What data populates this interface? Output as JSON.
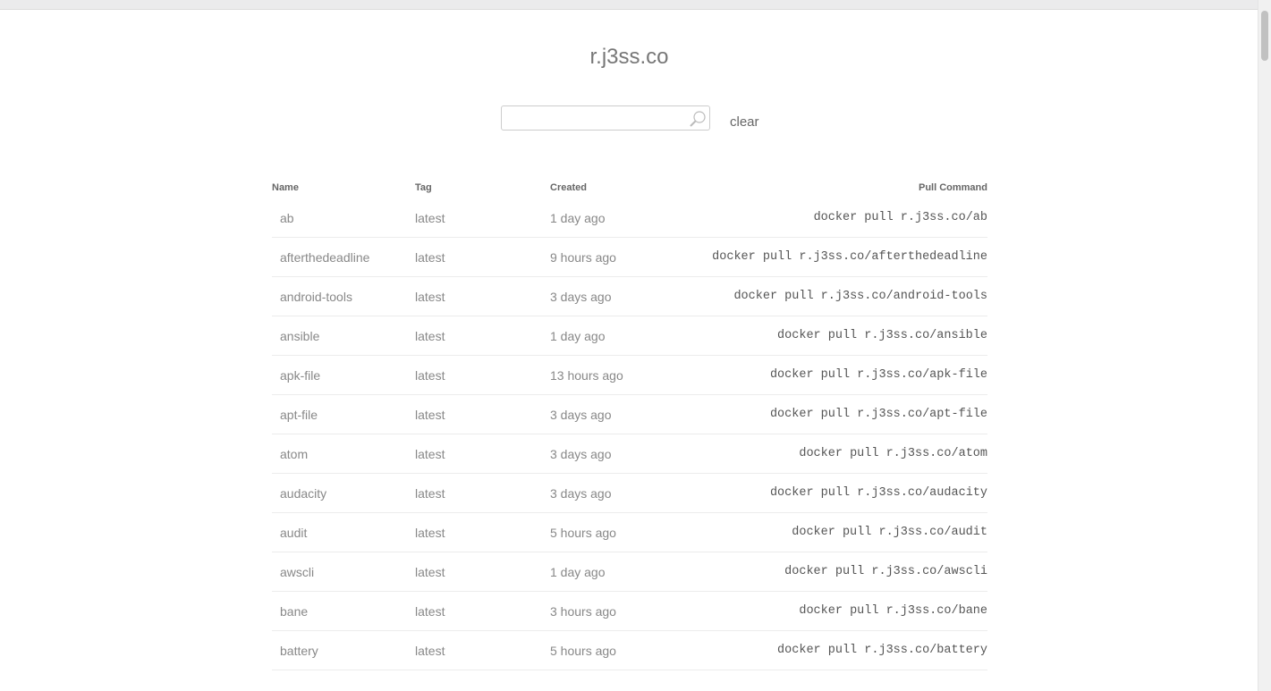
{
  "title": "r.j3ss.co",
  "search": {
    "value": "",
    "placeholder": "",
    "icon": "search-icon",
    "clear_label": "clear"
  },
  "table": {
    "headers": {
      "name": "Name",
      "tag": "Tag",
      "created": "Created",
      "pull": "Pull Command"
    },
    "rows": [
      {
        "name": "ab",
        "tag": "latest",
        "created": "1 day ago",
        "pull": "docker pull r.j3ss.co/ab"
      },
      {
        "name": "afterthedeadline",
        "tag": "latest",
        "created": "9 hours ago",
        "pull": "docker pull r.j3ss.co/afterthedeadline"
      },
      {
        "name": "android-tools",
        "tag": "latest",
        "created": "3 days ago",
        "pull": "docker pull r.j3ss.co/android-tools"
      },
      {
        "name": "ansible",
        "tag": "latest",
        "created": "1 day ago",
        "pull": "docker pull r.j3ss.co/ansible"
      },
      {
        "name": "apk-file",
        "tag": "latest",
        "created": "13 hours ago",
        "pull": "docker pull r.j3ss.co/apk-file"
      },
      {
        "name": "apt-file",
        "tag": "latest",
        "created": "3 days ago",
        "pull": "docker pull r.j3ss.co/apt-file"
      },
      {
        "name": "atom",
        "tag": "latest",
        "created": "3 days ago",
        "pull": "docker pull r.j3ss.co/atom"
      },
      {
        "name": "audacity",
        "tag": "latest",
        "created": "3 days ago",
        "pull": "docker pull r.j3ss.co/audacity"
      },
      {
        "name": "audit",
        "tag": "latest",
        "created": "5 hours ago",
        "pull": "docker pull r.j3ss.co/audit"
      },
      {
        "name": "awscli",
        "tag": "latest",
        "created": "1 day ago",
        "pull": "docker pull r.j3ss.co/awscli"
      },
      {
        "name": "bane",
        "tag": "latest",
        "created": "3 hours ago",
        "pull": "docker pull r.j3ss.co/bane"
      },
      {
        "name": "battery",
        "tag": "latest",
        "created": "5 hours ago",
        "pull": "docker pull r.j3ss.co/battery"
      }
    ]
  }
}
